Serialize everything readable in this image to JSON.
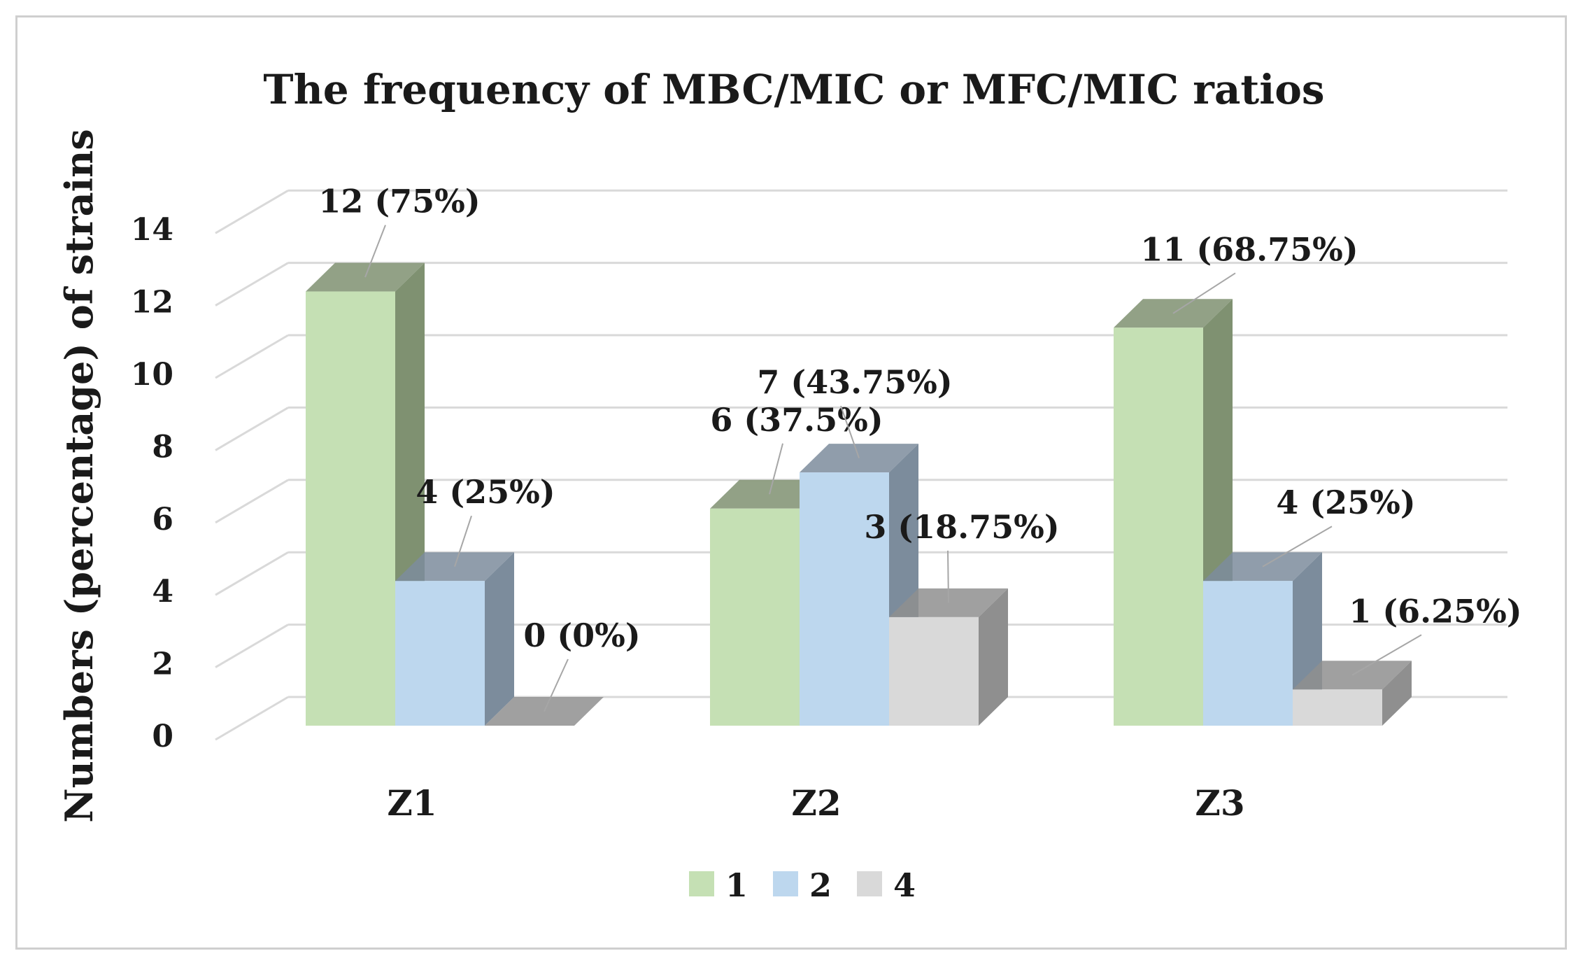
{
  "chart_data": {
    "type": "bar",
    "title": "The frequency of MBC/MIC or MFC/MIC ratios",
    "xlabel": "",
    "ylabel": "Numbers (percentage) of strains",
    "ylim": [
      0,
      14
    ],
    "yticks": [
      0,
      2,
      4,
      6,
      8,
      10,
      12,
      14
    ],
    "grid": true,
    "legend_position": "bottom",
    "categories": [
      "Z1",
      "Z2",
      "Z3"
    ],
    "series": [
      {
        "name": "1",
        "color": "#c5e0b4",
        "side_color": "#7f9171",
        "values": [
          12,
          6,
          11
        ],
        "labels": [
          "12 (75%)",
          "6 (37.5%)",
          "11 (68.75%)"
        ]
      },
      {
        "name": "2",
        "color": "#bdd7ee",
        "side_color": "#7c8c9c",
        "values": [
          4,
          7,
          4
        ],
        "labels": [
          "4 (25%)",
          "7 (43.75%)",
          "4 (25%)"
        ]
      },
      {
        "name": "4",
        "color": "#d9d9d9",
        "side_color": "#8f8f8f",
        "values": [
          0,
          3,
          1
        ],
        "labels": [
          "0 (0%)",
          "3 (18.75%)",
          "1 (6.25%)"
        ]
      }
    ]
  }
}
